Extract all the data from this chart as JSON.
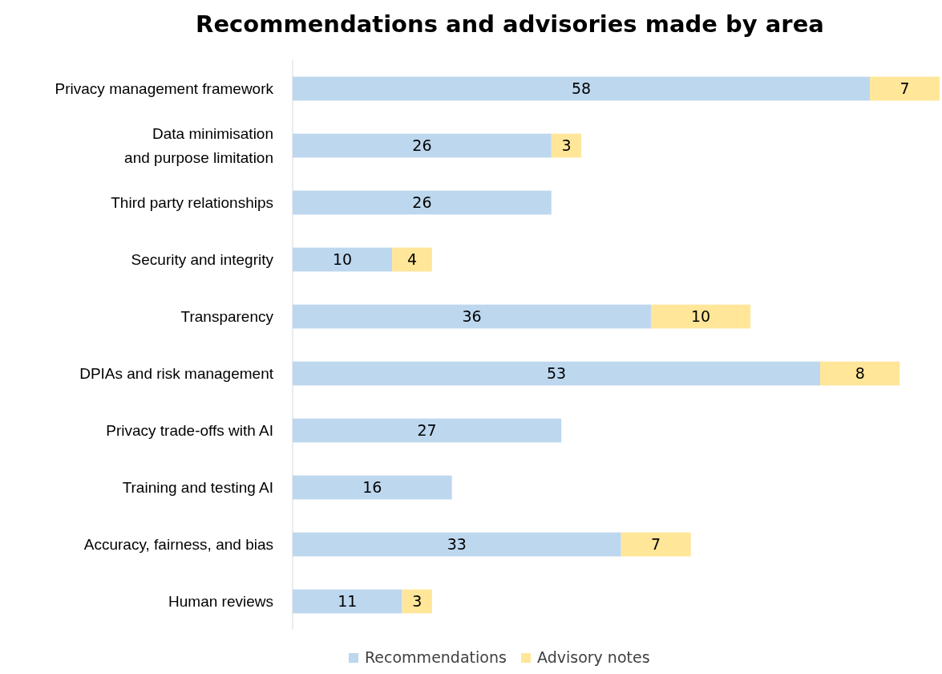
{
  "chart_data": {
    "type": "bar",
    "title": "Recommendations and advisories made by area",
    "orientation": "horizontal",
    "stacked": true,
    "categories": [
      "Privacy management framework",
      "Data minimisation\nand purpose limitation",
      "Third party relationships",
      "Security and integrity",
      "Transparency",
      "DPIAs and risk management",
      "Privacy trade-offs with AI",
      "Training and testing AI",
      "Accuracy, fairness, and bias",
      "Human reviews"
    ],
    "series": [
      {
        "name": "Recommendations",
        "color": "#bdd7ee",
        "values": [
          58,
          26,
          26,
          10,
          36,
          53,
          27,
          16,
          33,
          11
        ]
      },
      {
        "name": "Advisory notes",
        "color": "#ffe699",
        "values": [
          7,
          3,
          null,
          4,
          10,
          8,
          null,
          null,
          7,
          3
        ]
      }
    ],
    "data_labels": true,
    "legend": "bottom"
  }
}
